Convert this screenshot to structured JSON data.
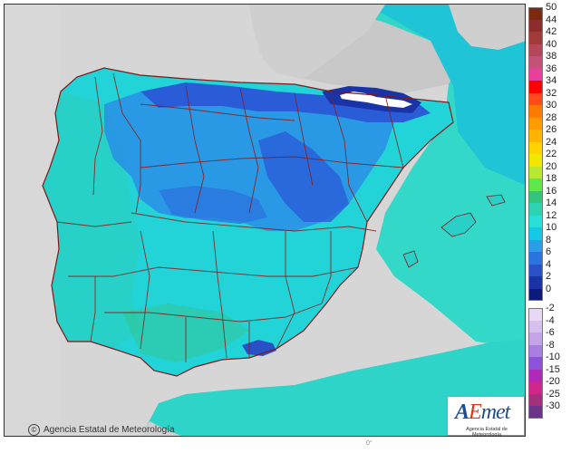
{
  "credit": {
    "symbol": "©",
    "text": "Agencia Estatal de Meteorología"
  },
  "logo": {
    "word_a": "A",
    "word_e": "E",
    "word_rest": "met",
    "subtitle": "Agencia Estatal de Meteorología"
  },
  "bottom_mark": "0°",
  "legend": {
    "entries": [
      {
        "label": "50",
        "color": "#7a2a10"
      },
      {
        "label": "44",
        "color": "#8e2b2b"
      },
      {
        "label": "42",
        "color": "#a33a3a"
      },
      {
        "label": "40",
        "color": "#b5475a"
      },
      {
        "label": "38",
        "color": "#c45277"
      },
      {
        "label": "36",
        "color": "#e8409a"
      },
      {
        "label": "34",
        "color": "#ff0000"
      },
      {
        "label": "32",
        "color": "#ff4a1a"
      },
      {
        "label": "30",
        "color": "#ff7a00"
      },
      {
        "label": "28",
        "color": "#ff9a00"
      },
      {
        "label": "26",
        "color": "#ffb400"
      },
      {
        "label": "24",
        "color": "#ffd200"
      },
      {
        "label": "22",
        "color": "#f0e800"
      },
      {
        "label": "20",
        "color": "#b8e832"
      },
      {
        "label": "18",
        "color": "#5ee84c"
      },
      {
        "label": "16",
        "color": "#33c47e"
      },
      {
        "label": "14",
        "color": "#2ed4b0"
      },
      {
        "label": "12",
        "color": "#27e0d8"
      },
      {
        "label": "10",
        "color": "#16c8e6"
      },
      {
        "label": "8",
        "color": "#2a9ee8"
      },
      {
        "label": "6",
        "color": "#2a74e0"
      },
      {
        "label": "4",
        "color": "#2a50c8"
      },
      {
        "label": "2",
        "color": "#1a34a8"
      },
      {
        "label": "0",
        "color": "#0c1a7a"
      },
      {
        "label": "-2",
        "color": "#e8d8f4"
      },
      {
        "label": "-4",
        "color": "#d8c0ee"
      },
      {
        "label": "-6",
        "color": "#c4a4e6"
      },
      {
        "label": "-8",
        "color": "#a87ee0"
      },
      {
        "label": "-10",
        "color": "#8c52d8"
      },
      {
        "label": "-15",
        "color": "#b02ab8"
      },
      {
        "label": "-20",
        "color": "#d0268c"
      },
      {
        "label": "-25",
        "color": "#a4307c"
      },
      {
        "label": "-30",
        "color": "#6c3488"
      }
    ]
  }
}
